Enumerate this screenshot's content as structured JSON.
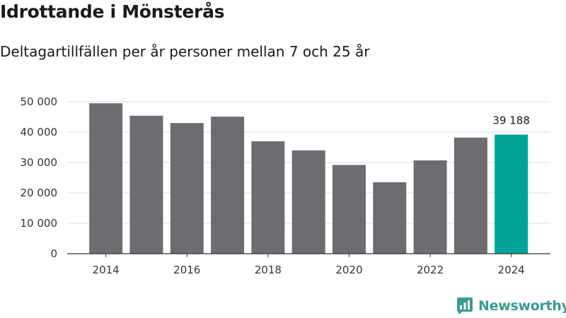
{
  "header": {
    "title": "Idrottande i Mönsterås",
    "subtitle": "Deltagartillfällen per år personer mellan 7 och 25 år"
  },
  "colors": {
    "bar": "#6d6d71",
    "highlight": "#00a398",
    "brand": "#3a9a94",
    "grid": "#dddddd",
    "axis": "#333333"
  },
  "chart_data": {
    "type": "bar",
    "title": "Idrottande i Mönsterås",
    "subtitle": "Deltagartillfällen per år personer mellan 7 och 25 år",
    "xlabel": "",
    "ylabel": "",
    "categories": [
      "2014",
      "2015",
      "2016",
      "2017",
      "2018",
      "2019",
      "2020",
      "2021",
      "2022",
      "2023",
      "2024"
    ],
    "values": [
      49500,
      45400,
      43000,
      45100,
      37000,
      34000,
      29200,
      23500,
      30700,
      38200,
      39188
    ],
    "ylim": [
      0,
      50000
    ],
    "yticks": [
      0,
      10000,
      20000,
      30000,
      40000,
      50000
    ],
    "ytick_labels": [
      "0",
      "10 000",
      "20 000",
      "30 000",
      "40 000",
      "50 000"
    ],
    "xtick_labels": [
      "2014",
      "2016",
      "2018",
      "2020",
      "2022",
      "2024"
    ],
    "highlight_category": "2024",
    "data_labels": [
      {
        "category": "2024",
        "text": "39 188"
      }
    ],
    "grid": true,
    "legend": "none"
  },
  "logo": {
    "name": "Newsworthy",
    "icon": "newsworthy-logo-icon"
  }
}
